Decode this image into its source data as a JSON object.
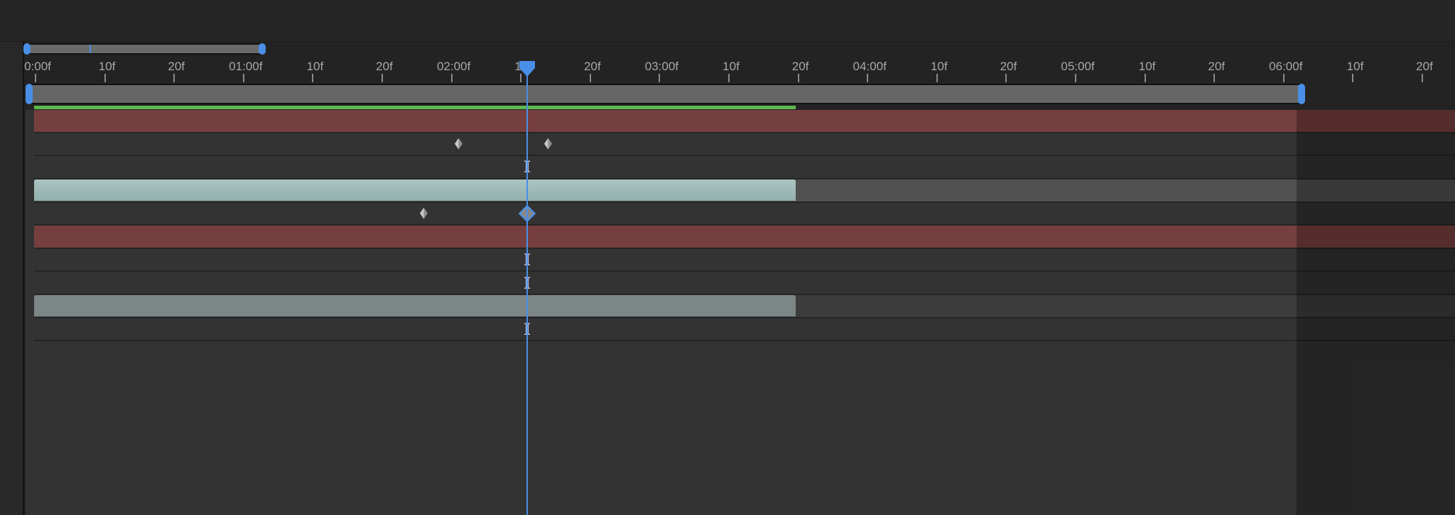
{
  "ruler": {
    "labels": [
      "0:00f",
      "10f",
      "20f",
      "01:00f",
      "10f",
      "20f",
      "02:00f",
      "10f",
      "20f",
      "03:00f",
      "10f",
      "20f",
      "04:00f",
      "10f",
      "20f",
      "05:00f",
      "10f",
      "20f",
      "06:00f",
      "10f",
      "20f"
    ]
  },
  "current_time_label": "10f",
  "colors": {
    "accent": "#4a8fe7",
    "render_bar": "#5cb84c",
    "red_track": "#763f3f",
    "teal_clip": "#9fbab7",
    "gray_clip": "#7c8686"
  },
  "icons": {
    "keyframe": "diamond",
    "selected_keyframe": "diamond-outline",
    "current_value": "i-beam"
  },
  "tracks": [
    {
      "type": "red"
    },
    {
      "type": "keyframes",
      "keyframes": [
        645,
        771
      ]
    },
    {
      "type": "ibeam"
    },
    {
      "type": "teal-clip"
    },
    {
      "type": "keyframes",
      "keyframes": [
        596
      ],
      "selected": true
    },
    {
      "type": "red"
    },
    {
      "type": "ibeam"
    },
    {
      "type": "ibeam"
    },
    {
      "type": "gray-clip"
    },
    {
      "type": "ibeam"
    }
  ]
}
